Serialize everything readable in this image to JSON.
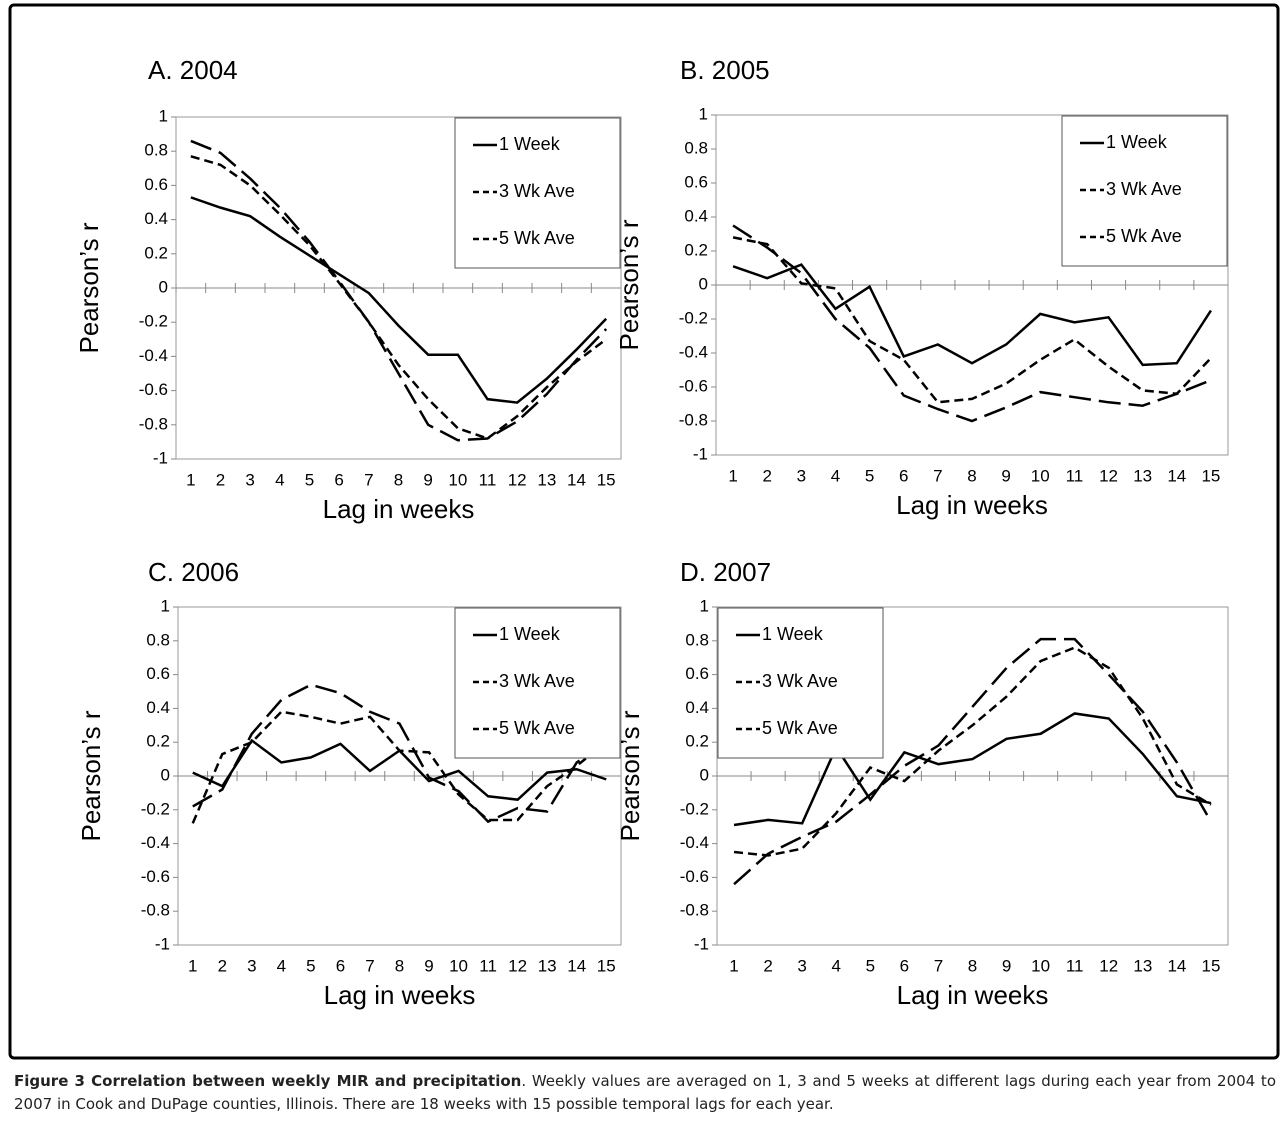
{
  "chart_data": [
    {
      "type": "line",
      "title": "A. 2004",
      "x_label": "Lag in weeks",
      "y_label": "Pearson’s r",
      "categories": [
        "1",
        "2",
        "3",
        "4",
        "5",
        "6",
        "7",
        "8",
        "9",
        "10",
        "11",
        "12",
        "13",
        "14",
        "15"
      ],
      "ylim": [
        -1,
        1
      ],
      "yticks": [
        -1,
        -0.8,
        -0.6,
        -0.4,
        -0.2,
        0,
        0.2,
        0.4,
        0.6,
        0.8,
        1
      ],
      "legend": "upper right",
      "series": [
        {
          "name": "1 Week",
          "color": "#000000",
          "dash": "solid",
          "values": [
            0.53,
            0.47,
            0.42,
            0.3,
            0.19,
            0.08,
            -0.03,
            -0.22,
            -0.39,
            -0.39,
            -0.65,
            -0.67,
            -0.53,
            -0.36,
            -0.18
          ]
        },
        {
          "name": "3 Wk Ave",
          "color": "#000000",
          "dash": "short",
          "values": [
            0.77,
            0.72,
            0.6,
            0.43,
            0.25,
            0.03,
            -0.2,
            -0.45,
            -0.65,
            -0.82,
            -0.88,
            -0.75,
            -0.58,
            -0.43,
            -0.3
          ]
        },
        {
          "name": "5 Wk Ave",
          "color": "#000000",
          "dash": "long",
          "values": [
            0.86,
            0.79,
            0.64,
            0.47,
            0.27,
            0.04,
            -0.2,
            -0.5,
            -0.8,
            -0.89,
            -0.88,
            -0.78,
            -0.62,
            -0.42,
            -0.24
          ]
        }
      ]
    },
    {
      "type": "line",
      "title": "B. 2005",
      "x_label": "Lag in weeks",
      "y_label": "Pearson’s r",
      "categories": [
        "1",
        "2",
        "3",
        "4",
        "5",
        "6",
        "7",
        "8",
        "9",
        "10",
        "11",
        "12",
        "13",
        "14",
        "15"
      ],
      "ylim": [
        -1,
        1
      ],
      "yticks": [
        -1,
        -0.8,
        -0.6,
        -0.4,
        -0.2,
        0,
        0.2,
        0.4,
        0.6,
        0.8,
        1
      ],
      "legend": "upper right",
      "series": [
        {
          "name": "1 Week",
          "color": "#000000",
          "dash": "solid",
          "values": [
            0.11,
            0.04,
            0.12,
            -0.14,
            -0.01,
            -0.42,
            -0.35,
            -0.46,
            -0.35,
            -0.17,
            -0.22,
            -0.19,
            -0.47,
            -0.46,
            -0.15
          ]
        },
        {
          "name": "3 Wk Ave",
          "color": "#000000",
          "dash": "short",
          "values": [
            0.28,
            0.24,
            0.01,
            -0.02,
            -0.33,
            -0.44,
            -0.69,
            -0.67,
            -0.58,
            -0.44,
            -0.32,
            -0.48,
            -0.62,
            -0.64,
            -0.43
          ]
        },
        {
          "name": "5 Wk Ave",
          "color": "#000000",
          "dash": "long",
          "values": [
            0.35,
            0.22,
            0.07,
            -0.2,
            -0.37,
            -0.65,
            -0.73,
            -0.8,
            -0.72,
            -0.63,
            -0.66,
            -0.69,
            -0.71,
            -0.64,
            -0.56
          ]
        }
      ]
    },
    {
      "type": "line",
      "title": "C. 2006",
      "x_label": "Lag in weeks",
      "y_label": "Pearson’s r",
      "categories": [
        "1",
        "2",
        "3",
        "4",
        "5",
        "6",
        "7",
        "8",
        "9",
        "10",
        "11",
        "12",
        "13",
        "14",
        "15"
      ],
      "ylim": [
        -1,
        1
      ],
      "yticks": [
        -1,
        -0.8,
        -0.6,
        -0.4,
        -0.2,
        0,
        0.2,
        0.4,
        0.6,
        0.8,
        1
      ],
      "legend": "upper right",
      "series": [
        {
          "name": "1 Week",
          "color": "#000000",
          "dash": "solid",
          "values": [
            0.02,
            -0.06,
            0.21,
            0.08,
            0.11,
            0.19,
            0.03,
            0.15,
            -0.03,
            0.03,
            -0.12,
            -0.14,
            0.02,
            0.04,
            -0.02
          ]
        },
        {
          "name": "3 Wk Ave",
          "color": "#000000",
          "dash": "short",
          "values": [
            -0.28,
            0.13,
            0.2,
            0.38,
            0.35,
            0.31,
            0.35,
            0.15,
            0.14,
            -0.11,
            -0.26,
            -0.26,
            -0.06,
            0.06,
            0.2
          ]
        },
        {
          "name": "5 Wk Ave",
          "color": "#000000",
          "dash": "long",
          "values": [
            -0.18,
            -0.08,
            0.25,
            0.45,
            0.54,
            0.49,
            0.38,
            0.31,
            -0.01,
            -0.09,
            -0.27,
            -0.19,
            -0.21,
            0.08,
            0.2
          ]
        }
      ]
    },
    {
      "type": "line",
      "title": "D. 2007",
      "x_label": "Lag in weeks",
      "y_label": "Pearson’s r",
      "categories": [
        "1",
        "2",
        "3",
        "4",
        "5",
        "6",
        "7",
        "8",
        "9",
        "10",
        "11",
        "12",
        "13",
        "14",
        "15"
      ],
      "ylim": [
        -1,
        1
      ],
      "yticks": [
        -1,
        -0.8,
        -0.6,
        -0.4,
        -0.2,
        0,
        0.2,
        0.4,
        0.6,
        0.8,
        1
      ],
      "legend": "upper left",
      "series": [
        {
          "name": "1 Week",
          "color": "#000000",
          "dash": "solid",
          "values": [
            -0.29,
            -0.26,
            -0.28,
            0.17,
            -0.14,
            0.14,
            0.07,
            0.1,
            0.22,
            0.25,
            0.37,
            0.34,
            0.13,
            -0.12,
            -0.16
          ]
        },
        {
          "name": "3 Wk Ave",
          "color": "#000000",
          "dash": "short",
          "values": [
            -0.45,
            -0.47,
            -0.43,
            -0.22,
            0.05,
            -0.03,
            0.15,
            0.3,
            0.47,
            0.68,
            0.76,
            0.64,
            0.34,
            -0.05,
            -0.17
          ]
        },
        {
          "name": "5 Wk Ave",
          "color": "#000000",
          "dash": "long",
          "values": [
            -0.64,
            -0.46,
            -0.36,
            -0.27,
            -0.11,
            0.06,
            0.18,
            0.41,
            0.64,
            0.81,
            0.81,
            0.6,
            0.38,
            0.08,
            -0.27
          ]
        }
      ]
    }
  ],
  "caption": {
    "title": "Figure 3 Correlation between weekly MIR and precipitation",
    "text": ". Weekly values are averaged on 1, 3 and 5 weeks at different lags during each year from 2004 to 2007 in Cook and DuPage counties, Illinois. There are 18 weeks with 15 possible temporal lags for each year."
  }
}
